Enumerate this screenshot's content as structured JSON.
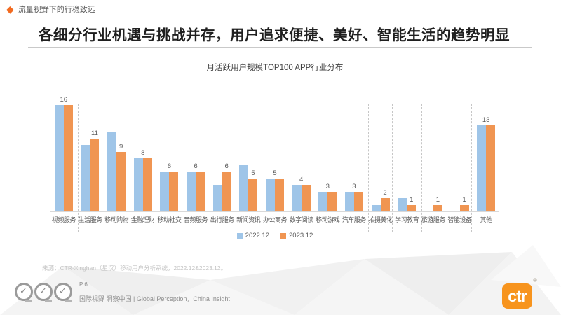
{
  "header": {
    "kicker": "流量视野下的行稳致远"
  },
  "title": "各细分行业机遇与挑战并存，用户追求便捷、美好、智能生活的趋势明显",
  "chart_data": {
    "type": "bar",
    "title": "月活跃用户规模TOP100 APP行业分布",
    "categories": [
      "视频服务",
      "生活服务",
      "移动购物",
      "金融理财",
      "移动社交",
      "音频服务",
      "出行服务",
      "新闻资讯",
      "办公商务",
      "数字阅读",
      "移动游戏",
      "汽车服务",
      "拍摄美化",
      "学习教育",
      "旅游服务",
      "智能设备",
      "其他"
    ],
    "series": [
      {
        "name": "2022.12",
        "color": "#9FC5E8",
        "values": [
          16,
          10,
          12,
          8,
          6,
          6,
          4,
          7,
          5,
          4,
          3,
          3,
          1,
          2,
          0,
          0,
          13
        ]
      },
      {
        "name": "2023.12",
        "color": "#F09552",
        "values": [
          16,
          11,
          9,
          8,
          6,
          6,
          6,
          5,
          5,
          4,
          3,
          3,
          2,
          1,
          1,
          1,
          13
        ]
      }
    ],
    "value_labels_from_series": "2023.12",
    "value_labels": [
      16,
      11,
      9,
      8,
      6,
      6,
      6,
      5,
      5,
      4,
      3,
      3,
      2,
      1,
      1,
      1,
      13
    ],
    "ylim": [
      0,
      16
    ],
    "grid": false,
    "legend_position": "bottom-center",
    "highlight_ranges": [
      [
        1,
        1
      ],
      [
        6,
        6
      ],
      [
        12,
        12
      ],
      [
        14,
        15
      ]
    ]
  },
  "source_note": "来源：CTR-Xinghan（星汉）移动用户分析系统，2022.12&2023.12。",
  "footer": {
    "page_number": "P 6",
    "tagline": "国际视野 洞察中国 | Global Perception，China Insight",
    "logo_text": "ctr",
    "logo_reg_mark": "®"
  },
  "colors": {
    "accent_orange": "#F26B21",
    "logo_orange": "#F7941E",
    "series_2022": "#9FC5E8",
    "series_2023": "#F09552",
    "highlight_dash": "#C6C6C6"
  }
}
